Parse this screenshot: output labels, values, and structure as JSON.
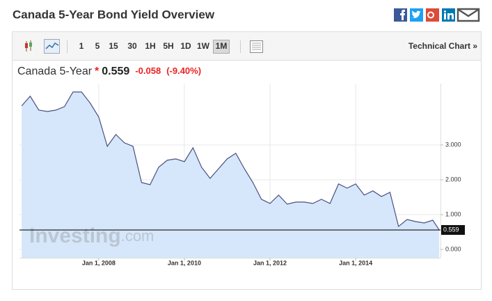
{
  "header": {
    "title": "Canada 5-Year Bond Yield Overview"
  },
  "toolbar": {
    "intervals": [
      "1",
      "5",
      "15",
      "30",
      "1H",
      "5H",
      "1D",
      "1W",
      "1M"
    ],
    "selected": "1M",
    "link": "Technical Chart »"
  },
  "quote": {
    "name": "Canada 5-Year",
    "marker": "*",
    "price": 0.559,
    "change": -0.058,
    "change_pct": "(-9.40%)"
  },
  "chart_data": {
    "type": "area",
    "watermark": {
      "brand": "Investing",
      "suffix": ".com"
    },
    "x": [
      2006.2,
      2006.4,
      2006.6,
      2006.8,
      2007.0,
      2007.2,
      2007.4,
      2007.6,
      2007.8,
      2008.0,
      2008.2,
      2008.4,
      2008.6,
      2008.8,
      2009.0,
      2009.2,
      2009.4,
      2009.6,
      2009.8,
      2010.0,
      2010.2,
      2010.4,
      2010.6,
      2010.8,
      2011.0,
      2011.2,
      2011.4,
      2011.6,
      2011.8,
      2012.0,
      2012.2,
      2012.4,
      2012.6,
      2012.8,
      2013.0,
      2013.2,
      2013.4,
      2013.6,
      2013.8,
      2014.0,
      2014.2,
      2014.4,
      2014.6,
      2014.8,
      2015.0,
      2015.2,
      2015.4,
      2015.6,
      2015.8,
      2015.95
    ],
    "series": [
      {
        "color": "#4a5080",
        "fill": "#d6e7fb",
        "values": [
          4.12,
          4.4,
          4.0,
          3.96,
          4.0,
          4.1,
          4.52,
          4.52,
          4.2,
          3.8,
          2.96,
          3.3,
          3.06,
          2.96,
          1.92,
          1.86,
          2.36,
          2.56,
          2.6,
          2.52,
          2.92,
          2.36,
          2.04,
          2.32,
          2.6,
          2.76,
          2.32,
          1.92,
          1.44,
          1.32,
          1.56,
          1.3,
          1.36,
          1.36,
          1.32,
          1.44,
          1.32,
          1.88,
          1.76,
          1.88,
          1.56,
          1.68,
          1.52,
          1.64,
          0.66,
          0.86,
          0.8,
          0.76,
          0.84,
          0.559
        ]
      }
    ],
    "current_value": 0.559,
    "xlim": [
      2006.15,
      2015.98
    ],
    "xticks": [
      {
        "value": 2008,
        "label": "Jan 1, 2008"
      },
      {
        "value": 2010,
        "label": "Jan 1, 2010"
      },
      {
        "value": 2012,
        "label": "Jan 1, 2012"
      },
      {
        "value": 2014,
        "label": "Jan 1, 2014"
      }
    ],
    "ylim": [
      -0.24,
      4.76
    ],
    "yticks": [
      {
        "value": 0,
        "label": "0.000"
      },
      {
        "value": 1,
        "label": "1.000"
      },
      {
        "value": 2,
        "label": "2.000"
      },
      {
        "value": 3,
        "label": "3.000"
      }
    ],
    "grid": true
  }
}
